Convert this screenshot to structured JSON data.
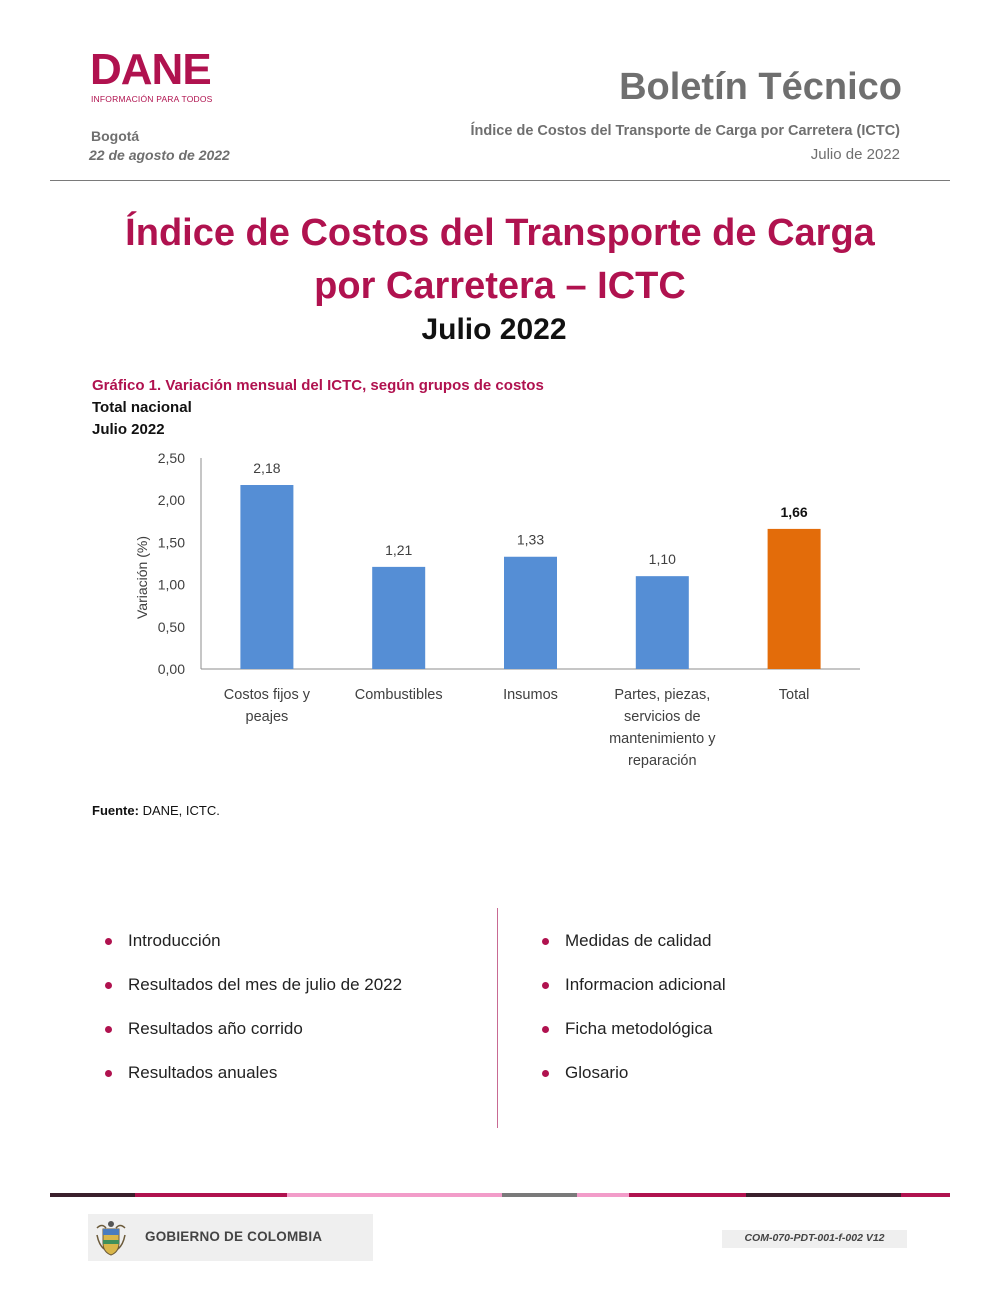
{
  "header": {
    "logo_word": "DANE",
    "logo_tagline": "INFORMACIÓN PARA TODOS",
    "doc_type": "Boletín Técnico",
    "city": "Bogotá",
    "publication_date": "22 de agosto de 2022",
    "subject": "Índice de Costos del Transporte de Carga por Carretera (ICTC)",
    "period": "Julio de 2022"
  },
  "title": {
    "line1": "Índice de Costos del Transporte de Carga",
    "line2": "por Carretera – ICTC",
    "period": "Julio 2022"
  },
  "chart_data": {
    "type": "bar",
    "title": "Gráfico 1. Variación mensual del ICTC, según grupos de costos",
    "subtitle": "Total nacional",
    "period": "Julio 2022",
    "ylabel": "Variación (%)",
    "xlabel": "",
    "ylim": [
      0,
      2.5
    ],
    "yticks": [
      "0,00",
      "0,50",
      "1,00",
      "1,50",
      "2,00",
      "2,50"
    ],
    "categories": [
      [
        "Costos fijos y",
        "peajes"
      ],
      [
        "Combustibles"
      ],
      [
        "Insumos"
      ],
      [
        "Partes, piezas,",
        "servicios de",
        "mantenimiento y",
        "reparación"
      ],
      [
        "Total"
      ]
    ],
    "values": [
      2.18,
      1.21,
      1.33,
      1.1,
      1.66
    ],
    "value_labels": [
      "2,18",
      "1,21",
      "1,33",
      "1,10",
      "1,66"
    ],
    "bar_colors": [
      "#558ed5",
      "#558ed5",
      "#558ed5",
      "#558ed5",
      "#e36c0a"
    ],
    "grid": false,
    "legend": "none"
  },
  "source": {
    "label": "Fuente:",
    "text": " DANE, ICTC."
  },
  "contents": {
    "left": [
      "Introducción",
      "Resultados del mes de julio de 2022",
      "Resultados año corrido",
      "Resultados anuales"
    ],
    "right": [
      "Medidas de calidad",
      "Informacion adicional",
      "Ficha metodológica",
      "Glosario"
    ]
  },
  "footer": {
    "government": "GOBIERNO DE COLOMBIA",
    "form_code": "COM-070-PDT-001-f-002 V12"
  },
  "colors": {
    "brand": "#b0124f",
    "bar_blue": "#558ed5",
    "bar_total": "#e36c0a",
    "gray_text": "#6f6f6f"
  }
}
